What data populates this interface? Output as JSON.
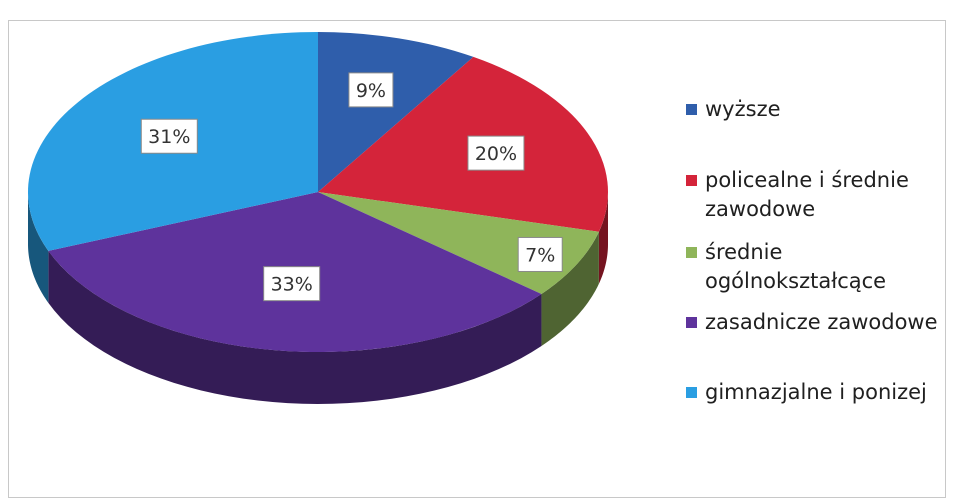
{
  "chart_data": {
    "type": "pie",
    "title": "",
    "categories": [
      "wyższe",
      "policealne i średnie zawodowe",
      "średnie ogólnokształcące",
      "zasadnicze zawodowe",
      "gimnazjalne i ponizej"
    ],
    "values": [
      9,
      20,
      7,
      33,
      31
    ],
    "value_labels": [
      "9%",
      "20%",
      "7%",
      "33%",
      "31%"
    ],
    "unit": "%",
    "colors": [
      "#2f5eab",
      "#d4243a",
      "#8fb55a",
      "#5e339c",
      "#2a9ee2"
    ],
    "style": "3d-perspective",
    "legend": "right"
  },
  "legend": {
    "items": [
      {
        "label": "wyższe",
        "lines": [
          "wyższe"
        ]
      },
      {
        "label": "policealne i średnie zawodowe",
        "lines": [
          "policealne i średnie",
          "zawodowe"
        ]
      },
      {
        "label": "średnie ogólnokształcące",
        "lines": [
          "średnie",
          "ogólnokształcące"
        ]
      },
      {
        "label": "zasadnicze zawodowe",
        "lines": [
          "zasadnicze zawodowe"
        ]
      },
      {
        "label": "gimnazjalne i ponizej",
        "lines": [
          "gimnazjalne i ponizej"
        ]
      }
    ]
  }
}
